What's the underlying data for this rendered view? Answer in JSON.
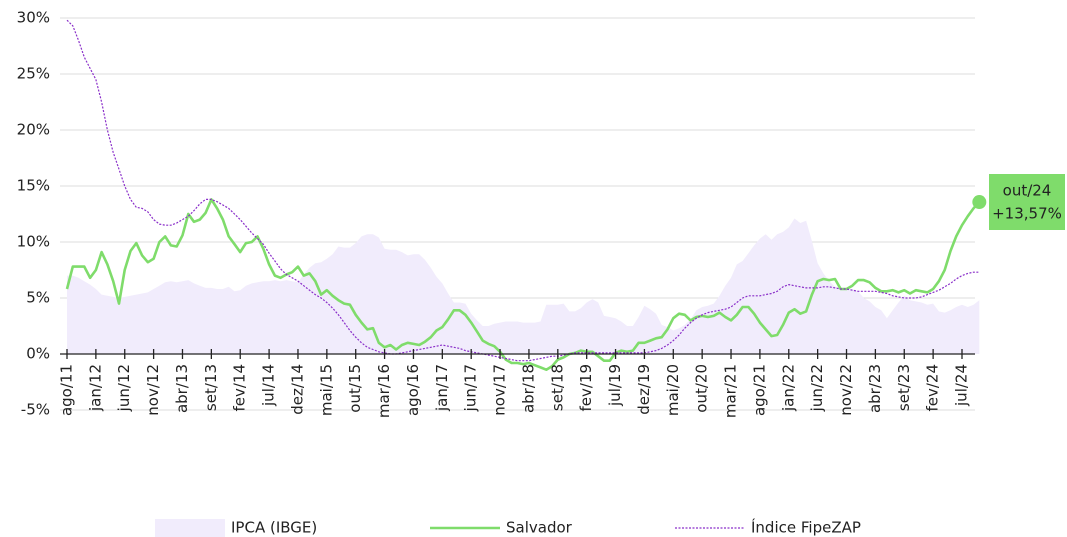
{
  "chart_data": {
    "type": "line",
    "categories": [
      "ago/11",
      null,
      null,
      null,
      null,
      "jan/12",
      null,
      null,
      null,
      null,
      "jun/12",
      null,
      null,
      null,
      null,
      "nov/12",
      null,
      null,
      null,
      null,
      "abr/13",
      null,
      null,
      null,
      null,
      "set/13",
      null,
      null,
      null,
      null,
      "fev/14",
      null,
      null,
      null,
      null,
      "jul/14",
      null,
      null,
      null,
      null,
      "dez/14",
      null,
      null,
      null,
      null,
      "mai/15",
      null,
      null,
      null,
      null,
      "out/15",
      null,
      null,
      null,
      null,
      "mar/16",
      null,
      null,
      null,
      null,
      "ago/16",
      null,
      null,
      null,
      null,
      "jan/17",
      null,
      null,
      null,
      null,
      "jun/17",
      null,
      null,
      null,
      null,
      "nov/17",
      null,
      null,
      null,
      null,
      "abr/18",
      null,
      null,
      null,
      null,
      "set/18",
      null,
      null,
      null,
      null,
      "fev/19",
      null,
      null,
      null,
      null,
      "jul/19",
      null,
      null,
      null,
      null,
      "dez/19",
      null,
      null,
      null,
      null,
      "mai/20",
      null,
      null,
      null,
      null,
      "out/20",
      null,
      null,
      null,
      null,
      "mar/21",
      null,
      null,
      null,
      null,
      "ago/21",
      null,
      null,
      null,
      null,
      "jan/22",
      null,
      null,
      null,
      null,
      "jun/22",
      null,
      null,
      null,
      null,
      "nov/22",
      null,
      null,
      null,
      null,
      "abr/23",
      null,
      null,
      null,
      null,
      "set/23",
      null,
      null,
      null,
      null,
      "fev/24",
      null,
      null,
      null,
      null,
      "jul/24",
      null,
      null,
      "out/24"
    ],
    "series": [
      {
        "name": "IPCA (IBGE)",
        "style": "area",
        "color": "#f1ecfc",
        "values": [
          7,
          7,
          6.8,
          6.5,
          6.2,
          5.8,
          5.3,
          5.2,
          5.1,
          5,
          5.1,
          5.2,
          5.3,
          5.4,
          5.5,
          5.8,
          6.1,
          6.4,
          6.5,
          6.4,
          6.5,
          6.6,
          6.3,
          6.1,
          5.9,
          5.9,
          5.8,
          5.8,
          6,
          5.6,
          5.7,
          6.1,
          6.3,
          6.4,
          6.5,
          6.5,
          6.6,
          6.5,
          6.6,
          6.5,
          6.4,
          7.1,
          7.7,
          8.1,
          8.2,
          8.5,
          8.9,
          9.6,
          9.5,
          9.5,
          9.9,
          10.5,
          10.7,
          10.7,
          10.4,
          9.4,
          9.3,
          9.3,
          9.1,
          8.8,
          8.9,
          8.9,
          8.4,
          7.7,
          6.9,
          6.3,
          5.4,
          4.6,
          4.6,
          4.5,
          3.6,
          3,
          2.5,
          2.5,
          2.7,
          2.8,
          2.9,
          2.9,
          2.9,
          2.8,
          2.8,
          2.8,
          2.9,
          4.4,
          4.4,
          4.4,
          4.5,
          3.8,
          3.8,
          4.1,
          4.6,
          4.9,
          4.6,
          3.4,
          3.3,
          3.2,
          2.9,
          2.5,
          2.5,
          3.3,
          4.3,
          4,
          3.6,
          2.6,
          2.4,
          2.1,
          2.3,
          2.6,
          3.1,
          3.9,
          4.2,
          4.3,
          4.5,
          5.2,
          6.1,
          6.8,
          8,
          8.3,
          9,
          9.7,
          10.3,
          10.7,
          10.2,
          10.7,
          10.9,
          11.3,
          12.1,
          11.7,
          11.9,
          10.1,
          8.1,
          7.2,
          6.5,
          6,
          5.9,
          5.8,
          5.8,
          5.6,
          5,
          4.7,
          4.2,
          3.9,
          3.2,
          3.9,
          4.6,
          5.2,
          4.8,
          4.7,
          4.6,
          4.4,
          4.5,
          3.8,
          3.7,
          3.9,
          4.2,
          4.4,
          4.2,
          4.4,
          4.8
        ]
      },
      {
        "name": "Salvador",
        "style": "solid",
        "color": "#7fdc6b",
        "values": [
          5.8,
          7.8,
          7.8,
          7.8,
          6.8,
          7.5,
          9.1,
          8,
          6.5,
          4.5,
          7.5,
          9.2,
          9.9,
          8.8,
          8.2,
          8.5,
          10,
          10.5,
          9.7,
          9.6,
          10.6,
          12.5,
          11.8,
          12,
          12.6,
          13.8,
          13,
          12,
          10.5,
          9.8,
          9.1,
          9.9,
          10,
          10.5,
          9.4,
          8,
          7,
          6.8,
          7.1,
          7.3,
          7.8,
          7,
          7.2,
          6.5,
          5.3,
          5.7,
          5.2,
          4.8,
          4.5,
          4.4,
          3.5,
          2.8,
          2.2,
          2.3,
          1,
          0.6,
          0.8,
          0.4,
          0.8,
          1,
          0.9,
          0.8,
          1.1,
          1.5,
          2.1,
          2.4,
          3.1,
          3.9,
          3.9,
          3.5,
          2.8,
          2,
          1.2,
          0.9,
          0.7,
          0.2,
          -0.5,
          -0.8,
          -0.8,
          -0.9,
          -0.8,
          -1,
          -1.2,
          -1.4,
          -1.1,
          -0.5,
          -0.3,
          0,
          0.1,
          0.3,
          0.2,
          0.2,
          -0.2,
          -0.6,
          -0.6,
          0.1,
          0.3,
          0.2,
          0.3,
          1,
          1,
          1.2,
          1.4,
          1.5,
          2.2,
          3.2,
          3.6,
          3.5,
          3,
          3.3,
          3.4,
          3.3,
          3.4,
          3.7,
          3.3,
          3,
          3.5,
          4.2,
          4.2,
          3.6,
          2.8,
          2.2,
          1.6,
          1.7,
          2.6,
          3.7,
          4,
          3.6,
          3.8,
          5.3,
          6.5,
          6.7,
          6.6,
          6.7,
          5.8,
          5.8,
          6.1,
          6.6,
          6.6,
          6.4,
          5.9,
          5.6,
          5.6,
          5.7,
          5.5,
          5.7,
          5.4,
          5.7,
          5.6,
          5.5,
          5.8,
          6.5,
          7.5,
          9.2,
          10.5,
          11.5,
          12.3,
          13,
          13.57
        ]
      },
      {
        "name": "Índice FipeZAP",
        "style": "dotted",
        "color": "#8a2fc9",
        "values": [
          29.8,
          29.3,
          28,
          26.5,
          25.5,
          24.5,
          22.5,
          20,
          18,
          16.5,
          15,
          13.8,
          13.1,
          13,
          12.7,
          12,
          11.6,
          11.5,
          11.5,
          11.7,
          12,
          12.3,
          12.8,
          13.4,
          13.8,
          13.8,
          13.6,
          13.3,
          13,
          12.5,
          12,
          11.4,
          10.8,
          10.3,
          9.8,
          9,
          8.3,
          7.6,
          7.1,
          6.8,
          6.5,
          6.1,
          5.7,
          5.3,
          5,
          4.6,
          4.1,
          3.5,
          2.8,
          2.1,
          1.5,
          1,
          0.6,
          0.4,
          0.2,
          0.1,
          0,
          0,
          0.1,
          0.2,
          0.3,
          0.4,
          0.5,
          0.6,
          0.7,
          0.8,
          0.7,
          0.6,
          0.5,
          0.3,
          0.2,
          0.1,
          0,
          -0.1,
          -0.2,
          -0.3,
          -0.4,
          -0.5,
          -0.6,
          -0.6,
          -0.6,
          -0.5,
          -0.4,
          -0.3,
          -0.2,
          -0.2,
          -0.1,
          0,
          0.1,
          0.1,
          0.1,
          0.1,
          0.1,
          0.1,
          0.1,
          0.1,
          0.1,
          0.1,
          0.1,
          0.1,
          0.1,
          0.2,
          0.3,
          0.5,
          0.8,
          1.2,
          1.7,
          2.3,
          2.8,
          3.2,
          3.5,
          3.7,
          3.8,
          3.9,
          4,
          4.2,
          4.6,
          5,
          5.2,
          5.2,
          5.2,
          5.3,
          5.4,
          5.6,
          6,
          6.2,
          6.1,
          6,
          5.9,
          5.9,
          5.9,
          6,
          6,
          5.9,
          5.8,
          5.8,
          5.7,
          5.6,
          5.6,
          5.6,
          5.6,
          5.5,
          5.4,
          5.2,
          5.1,
          5,
          5,
          5,
          5.1,
          5.3,
          5.5,
          5.7,
          6,
          6.3,
          6.7,
          7,
          7.2,
          7.3,
          7.3
        ]
      }
    ],
    "annotation": "+13,57%",
    "ylim": [
      -5,
      30
    ],
    "yticks": [
      {
        "value": -5,
        "label": "-5%"
      },
      {
        "value": 0,
        "label": "0%"
      },
      {
        "value": 5,
        "label": "5%"
      },
      {
        "value": 10,
        "label": "10%"
      },
      {
        "value": 15,
        "label": "15%"
      },
      {
        "value": 20,
        "label": "20%"
      },
      {
        "value": 25,
        "label": "25%"
      },
      {
        "value": 30,
        "label": "30%"
      }
    ],
    "grid": true
  }
}
